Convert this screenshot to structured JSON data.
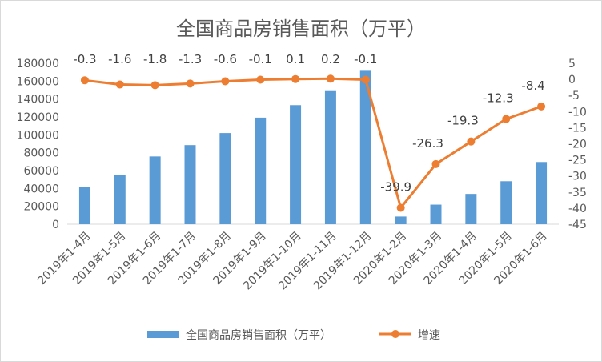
{
  "chart_data": {
    "type": "bar",
    "title": "全国商品房销售面积（万平）",
    "categories": [
      "2019年1-4月",
      "2019年1-5月",
      "2019年1-6月",
      "2019年1-7月",
      "2019年1-8月",
      "2019年1-9月",
      "2019年1-10月",
      "2019年1-11月",
      "2019年1-12月",
      "2020年1-2月",
      "2020年1-3月",
      "2020年1-4月",
      "2020年1-5月",
      "2020年1-6月"
    ],
    "series": [
      {
        "name": "全国商品房销售面积（万平）",
        "type": "bar",
        "axis": "left",
        "color": "#5B9BD5",
        "values": [
          42000,
          55500,
          75800,
          88500,
          102000,
          119200,
          133200,
          148900,
          171600,
          8600,
          21900,
          33900,
          48100,
          69600
        ]
      },
      {
        "name": "增速",
        "type": "line",
        "axis": "right",
        "color": "#ED7D31",
        "values": [
          -0.3,
          -1.6,
          -1.8,
          -1.3,
          -0.6,
          -0.1,
          0.1,
          0.2,
          -0.1,
          -39.9,
          -26.3,
          -19.3,
          -12.3,
          -8.4
        ],
        "labels": [
          "-0.3",
          "-1.6",
          "-1.8",
          "-1.3",
          "-0.6",
          "-0.1",
          "0.1",
          "0.2",
          "-0.1",
          "-39.9",
          "-26.3",
          "-19.3",
          "-12.3",
          "-8.4"
        ]
      }
    ],
    "left_axis": {
      "ylim": [
        0,
        180000
      ],
      "ticks": [
        "0",
        "20000",
        "40000",
        "60000",
        "80000",
        "100000",
        "120000",
        "140000",
        "160000",
        "180000"
      ]
    },
    "right_axis": {
      "ylim": [
        -45,
        5
      ],
      "ticks": [
        "5",
        "0",
        "-5",
        "-10",
        "-15",
        "-20",
        "-25",
        "-30",
        "-35",
        "-40",
        "-45"
      ]
    },
    "grid": false,
    "legend": "bottom"
  }
}
